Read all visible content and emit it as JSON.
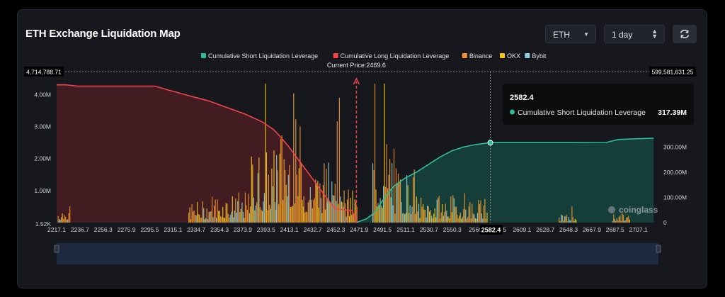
{
  "header": {
    "title": "ETH Exchange Liquidation Map",
    "symbol_select": "ETH",
    "range_select": "1 day"
  },
  "colors": {
    "short_cum": "#2ebd9b",
    "long_cum": "#f2434b",
    "binance": "#f0902e",
    "okx": "#f5c518",
    "bybit": "#8ecfd6"
  },
  "chart_data": {
    "type": "bar",
    "legend": [
      "Cumulative Short Liquidation Leverage",
      "Cumulative Long Liquidation Leverage",
      "Binance",
      "OKX",
      "Bybit"
    ],
    "legend_position": "top-center",
    "current_price_label": "Current Price:2469.6",
    "current_price": 2469.6,
    "top_left_value": "4,714,788.71",
    "top_right_value": "599,581,631.25",
    "y_left_ticks": [
      "1.52K",
      "1.00M",
      "2.00M",
      "3.00M",
      "4.00M"
    ],
    "y_right_ticks": [
      "0",
      "100.00M",
      "200.00M",
      "300.00M"
    ],
    "x_ticks": [
      "2217.1",
      "2236.7",
      "2256.3",
      "2275.9",
      "2295.5",
      "2315.1",
      "2334.7",
      "2354.3",
      "2373.9",
      "2393.5",
      "2413.1",
      "2432.7",
      "2452.3",
      "2471.9",
      "2491.5",
      "2511.1",
      "2530.7",
      "2550.3",
      "2569.9",
      "2589.5",
      "2609.1",
      "2628.7",
      "2648.3",
      "2667.9",
      "2687.5",
      "2707.1"
    ],
    "x_ticks_visible": [
      "2217.1",
      "2236.7",
      "2256.3",
      "2275.9",
      "2295.5",
      "2315.1",
      "2334.7",
      "2354.3",
      "2373.9",
      "2393.5",
      "2413.1",
      "2432.7",
      "2452.3",
      "2471.9",
      "2491.5",
      "2511.1",
      "2530.7",
      "2550.3",
      "2569",
      "",
      "2609.1",
      "2628.7",
      "2648.3",
      "2667.9",
      "2687.5",
      "2707.1"
    ],
    "x_tick_suffix": ".5",
    "hover_x_label": "2582.4",
    "long_cumulative": {
      "name": "Cumulative Long Liquidation Leverage",
      "x": [
        2217.1,
        2225,
        2235,
        2300,
        2310,
        2330,
        2345,
        2360,
        2375,
        2390,
        2400,
        2405,
        2412,
        2418,
        2425,
        2432,
        2440,
        2447,
        2452,
        2460,
        2466,
        2469.6
      ],
      "y": [
        4300000,
        4300000,
        4260000,
        4260000,
        4150000,
        3950000,
        3800000,
        3600000,
        3400000,
        3150000,
        2900000,
        2700000,
        2400000,
        2100000,
        1750000,
        1400000,
        1000000,
        650000,
        420000,
        400000,
        380000,
        0
      ]
    },
    "short_cumulative": {
      "name": "Cumulative Short Liquidation Leverage",
      "x": [
        2469.6,
        2478,
        2485,
        2492,
        2500,
        2510,
        2520,
        2530,
        2540,
        2550,
        2560,
        2570,
        2582.4,
        2610,
        2650,
        2680,
        2690,
        2700,
        2720
      ],
      "y": [
        0,
        15000000,
        40000000,
        90000000,
        140000000,
        175000000,
        200000000,
        230000000,
        260000000,
        285000000,
        300000000,
        310000000,
        317390000,
        317390000,
        317390000,
        318000000,
        330000000,
        332000000,
        335000000
      ]
    },
    "tooltip": {
      "price": "2582.4",
      "label": "Cumulative Short Liquidation Leverage",
      "value": "317.39M"
    },
    "watermark": "coinglass"
  }
}
